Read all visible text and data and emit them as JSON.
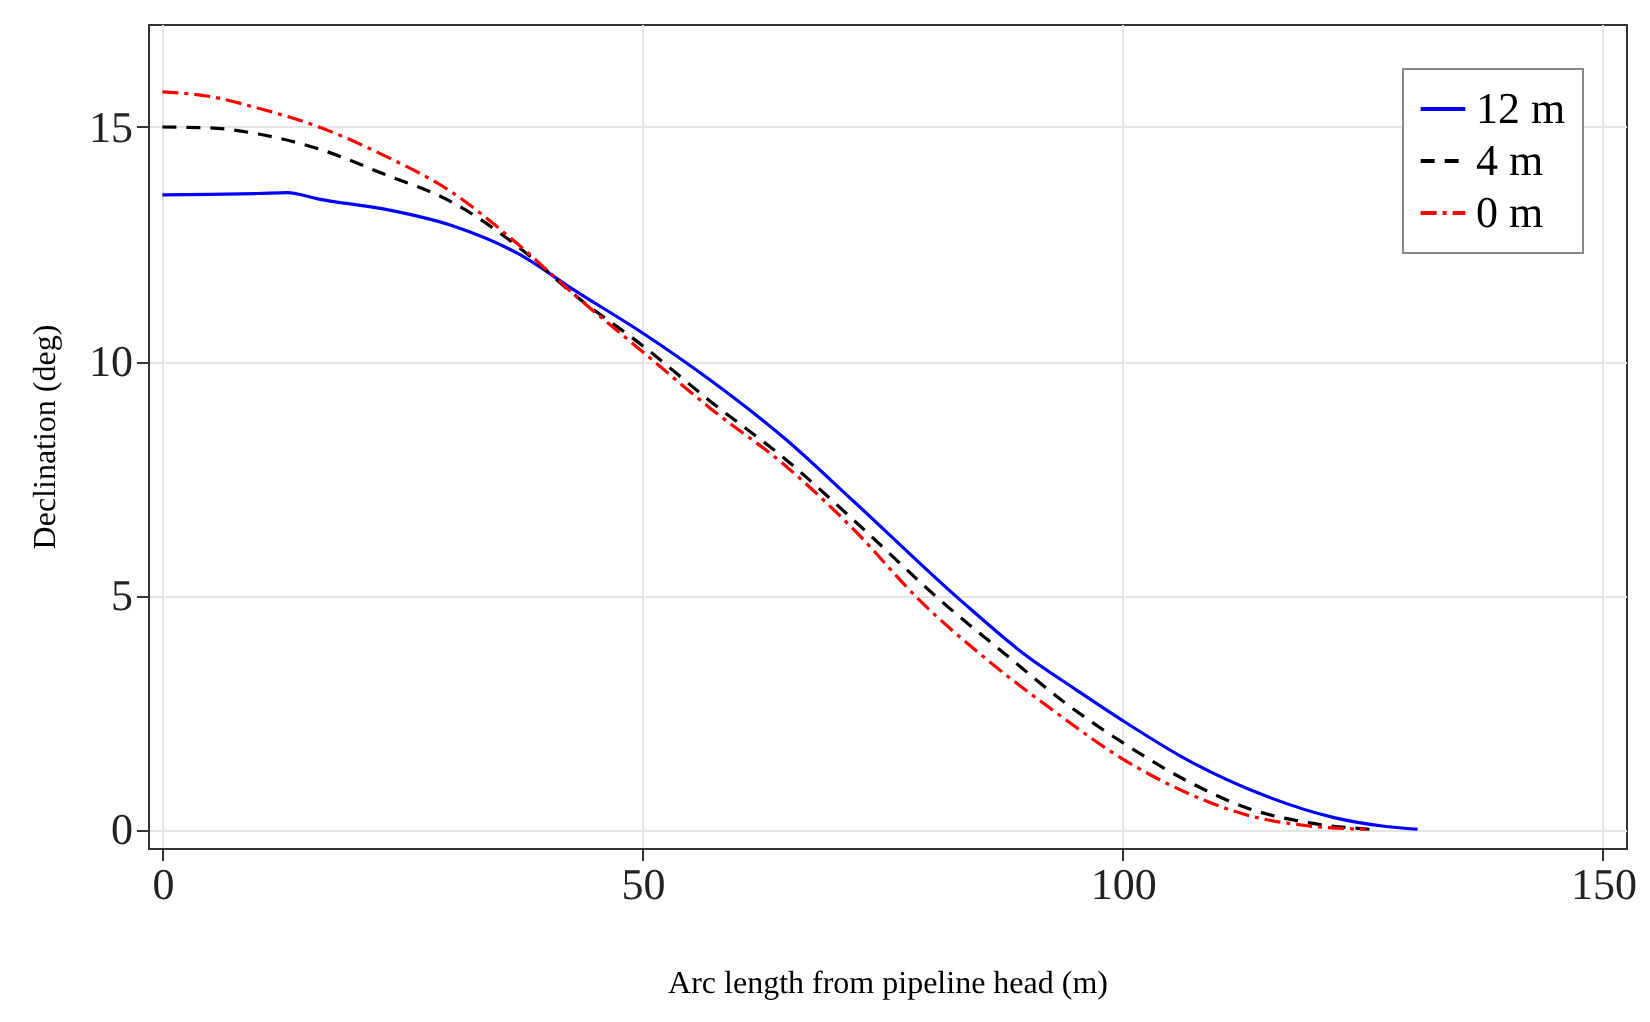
{
  "chart_data": {
    "type": "line",
    "xlabel": "Arc length from pipeline head (m)",
    "ylabel": "Declination (deg)",
    "xlim": [
      -1.5,
      152.4
    ],
    "ylim": [
      -0.4,
      17.2
    ],
    "xticks": [
      0,
      50,
      100,
      150
    ],
    "yticks": [
      0,
      5,
      10,
      15
    ],
    "grid": true,
    "legend": "top right",
    "series": [
      {
        "name": "12 m",
        "color": "#0000ff",
        "line_style": "solid",
        "x": [
          0,
          5,
          10,
          13,
          16.3,
          23,
          30.2,
          37,
          43,
          50,
          57,
          64.9,
          72,
          83,
          90,
          95,
          100,
          107,
          114.9,
          122,
          127,
          130.7
        ],
        "values": [
          13.55,
          13.56,
          13.58,
          13.6,
          13.46,
          13.25,
          12.89,
          12.3,
          11.5,
          10.6,
          9.6,
          8.33,
          7.0,
          4.91,
          3.7,
          3.0,
          2.32,
          1.45,
          0.71,
          0.25,
          0.07,
          0
        ]
      },
      {
        "name": "4 m",
        "color": "#000000",
        "line_style": "dashed",
        "x": [
          0,
          5,
          10,
          16.3,
          23,
          30.2,
          37,
          43,
          50,
          57,
          64.9,
          72,
          80.9,
          88,
          94,
          100,
          107,
          113,
          119,
          125.7
        ],
        "values": [
          15.0,
          14.98,
          14.85,
          14.53,
          14.0,
          13.39,
          12.45,
          11.4,
          10.33,
          9.15,
          7.9,
          6.6,
          4.91,
          3.7,
          2.7,
          1.85,
          1.0,
          0.45,
          0.15,
          0
        ]
      },
      {
        "name": "0 m",
        "color": "#ff0000",
        "line_style": "dashdot",
        "x": [
          0,
          5,
          10,
          16.3,
          23,
          30.2,
          37,
          43,
          50,
          57,
          64.9,
          72,
          78.8,
          86,
          93,
          100,
          107,
          113,
          119,
          125.3
        ],
        "values": [
          15.75,
          15.65,
          15.4,
          15.0,
          14.4,
          13.6,
          12.5,
          11.4,
          10.2,
          9.0,
          7.76,
          6.4,
          4.9,
          3.6,
          2.5,
          1.5,
          0.75,
          0.3,
          0.08,
          0
        ]
      }
    ]
  }
}
